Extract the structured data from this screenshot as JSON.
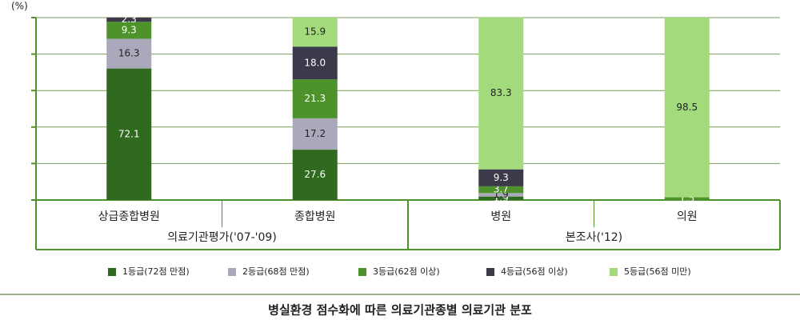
{
  "chart_data": {
    "type": "stacked-bar",
    "y_unit": "(%)",
    "caption": "병실환경 점수화에 따른 의료기관종별 의료기관 분포",
    "categories": [
      "상급종합병원",
      "종합병원",
      "병원",
      "의원"
    ],
    "groups": [
      "의료기관평가('07-'09)",
      "본조사('12)"
    ],
    "series": [
      {
        "name": "1등급(72점 만점)",
        "color": "#2f6a1f",
        "values": [
          72.1,
          27.6,
          1.9,
          0
        ],
        "value_labels": [
          "72.1",
          "27.6",
          "1.9",
          null
        ]
      },
      {
        "name": "2등급(68점 만점)",
        "color": "#a9a9bb",
        "values": [
          16.3,
          17.2,
          1.9,
          0
        ],
        "value_labels": [
          "16.3",
          "17.2",
          "1.9",
          null
        ]
      },
      {
        "name": "3등급(62점 이상)",
        "color": "#4e922c",
        "values": [
          9.3,
          21.3,
          3.7,
          1.5
        ],
        "value_labels": [
          "9.3",
          "21.3",
          "3.7",
          "1.5"
        ]
      },
      {
        "name": "4등급(56점 이상)",
        "color": "#3a3a4a",
        "values": [
          2.3,
          18.0,
          9.3,
          0
        ],
        "value_labels": [
          "2.3",
          "18.0",
          "9.3",
          null
        ]
      },
      {
        "name": "5등급(56점 미만)",
        "color": "#a2da7c",
        "values": [
          0,
          15.9,
          83.3,
          98.5
        ],
        "value_labels": [
          null,
          "15.9",
          "83.3",
          "98.5"
        ]
      }
    ],
    "ylim": [
      0,
      100
    ],
    "yticks": [
      0,
      20,
      40,
      60,
      80,
      100
    ],
    "grid": true
  }
}
